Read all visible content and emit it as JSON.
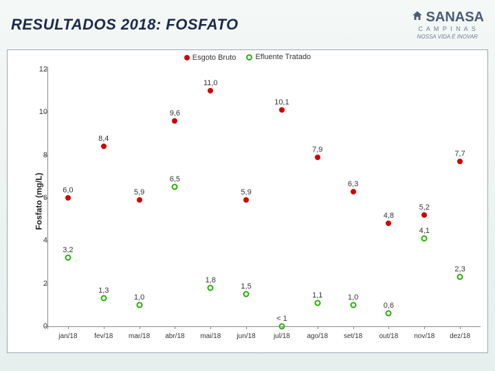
{
  "header": {
    "title": "RESULTADOS 2018: FOSFATO",
    "logo": {
      "name": "SANASA",
      "sub": "C A M P I N A S",
      "tag": "NOSSA VIDA É INOVAR"
    }
  },
  "chart": {
    "type": "scatter",
    "background_color": "#ffffff",
    "border_color": "#9aa7b0",
    "axis_color": "#888888",
    "text_color": "#333333",
    "ylabel": "Fosfato (mg/L)",
    "ylabel_fontsize": 12,
    "ylabel_fontweight": "700",
    "ylim": [
      0,
      12
    ],
    "ytick_step": 2,
    "yticks": [
      0,
      2,
      4,
      6,
      8,
      10,
      12
    ],
    "categories": [
      "jan/18",
      "fev/18",
      "mar/18",
      "abr/18",
      "mai/18",
      "jun/18",
      "jul/18",
      "ago/18",
      "set/18",
      "out/18",
      "nov/18",
      "dez/18"
    ],
    "tick_fontsize": 11,
    "legend": {
      "position": "top-center",
      "fontsize": 11,
      "items": [
        {
          "label": "Esgoto Bruto",
          "marker": "filled",
          "color": "#d00000"
        },
        {
          "label": "Efluente Tratado",
          "marker": "hollow",
          "color": "#22b000"
        }
      ]
    },
    "series": [
      {
        "name": "Esgoto Bruto",
        "marker": "filled",
        "marker_size": 8,
        "color": "#d00000",
        "label_fontsize": 11,
        "points": [
          {
            "x": 0,
            "y": 6.0,
            "label": "6,0"
          },
          {
            "x": 1,
            "y": 8.4,
            "label": "8,4"
          },
          {
            "x": 2,
            "y": 5.9,
            "label": "5,9"
          },
          {
            "x": 3,
            "y": 9.6,
            "label": "9,6"
          },
          {
            "x": 4,
            "y": 11.0,
            "label": "11,0"
          },
          {
            "x": 5,
            "y": 5.9,
            "label": "5,9"
          },
          {
            "x": 6,
            "y": 10.1,
            "label": "10,1"
          },
          {
            "x": 7,
            "y": 7.9,
            "label": "7,9"
          },
          {
            "x": 8,
            "y": 6.3,
            "label": "6,3"
          },
          {
            "x": 9,
            "y": 4.8,
            "label": "4,8"
          },
          {
            "x": 10,
            "y": 5.2,
            "label": "5,2"
          },
          {
            "x": 11,
            "y": 7.7,
            "label": "7,7"
          }
        ]
      },
      {
        "name": "Efluente Tratado",
        "marker": "hollow",
        "marker_size": 9,
        "color": "#22b000",
        "label_fontsize": 11,
        "points": [
          {
            "x": 0,
            "y": 3.2,
            "label": "3,2"
          },
          {
            "x": 1,
            "y": 1.3,
            "label": "1,3"
          },
          {
            "x": 2,
            "y": 1.0,
            "label": "1,0"
          },
          {
            "x": 3,
            "y": 6.5,
            "label": "6,5"
          },
          {
            "x": 4,
            "y": 1.8,
            "label": "1,8"
          },
          {
            "x": 5,
            "y": 1.5,
            "label": "1,5"
          },
          {
            "x": 6,
            "y": 0.0,
            "label": "< 1",
            "label_pos": "above"
          },
          {
            "x": 7,
            "y": 1.1,
            "label": "1,1"
          },
          {
            "x": 8,
            "y": 1.0,
            "label": "1,0"
          },
          {
            "x": 9,
            "y": 0.6,
            "label": "0,6"
          },
          {
            "x": 10,
            "y": 4.1,
            "label": "4,1"
          },
          {
            "x": 11,
            "y": 2.3,
            "label": "2,3"
          }
        ]
      }
    ]
  }
}
